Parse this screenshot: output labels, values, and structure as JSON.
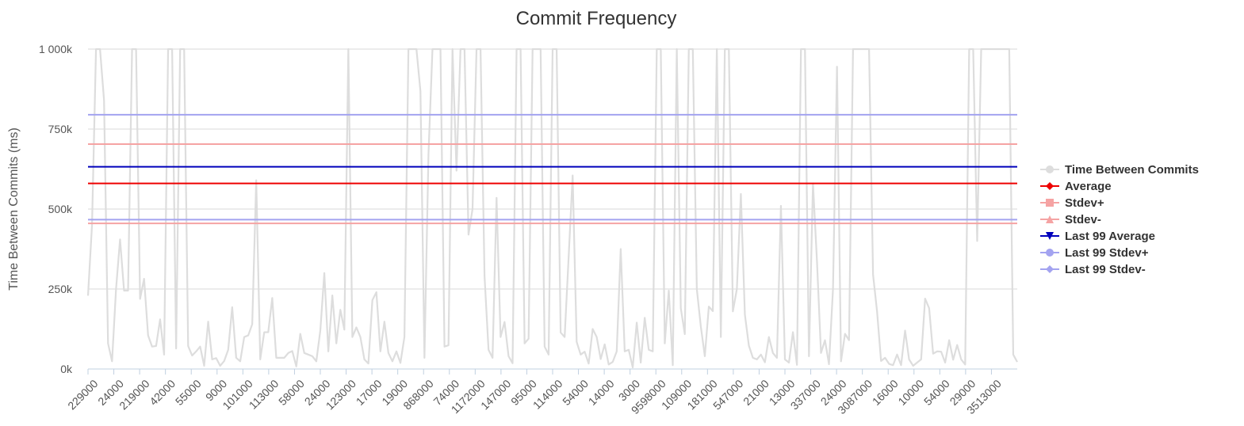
{
  "chart_data": {
    "type": "line",
    "title": "Commit Frequency",
    "xlabel": "",
    "ylabel": "Time Between Commits (ms)",
    "ylim": [
      0,
      1000000
    ],
    "yticks": [
      {
        "value": 0,
        "label": "0k"
      },
      {
        "value": 250000,
        "label": "250k"
      },
      {
        "value": 500000,
        "label": "500k"
      },
      {
        "value": 750000,
        "label": "750k"
      },
      {
        "value": 1000000,
        "label": "1 000k"
      }
    ],
    "x_tick_labels": [
      "229000",
      "24000",
      "219000",
      "42000",
      "55000",
      "9000",
      "101000",
      "113000",
      "58000",
      "24000",
      "123000",
      "17000",
      "19000",
      "868000",
      "74000",
      "1172000",
      "147000",
      "95000",
      "114000",
      "54000",
      "14000",
      "3000",
      "9598000",
      "109000",
      "181000",
      "547000",
      "21000",
      "13000",
      "337000",
      "24000",
      "3087000",
      "16000",
      "10000",
      "54000",
      "29000",
      "3513000"
    ],
    "grid": true,
    "legend_position": "right",
    "series": [
      {
        "name": "Time Between Commits",
        "color": "#dddddd",
        "marker": "circle",
        "values": [
          229000,
          450000,
          1000000,
          1000000,
          840000,
          80000,
          24000,
          250000,
          405000,
          245000,
          245000,
          1000000,
          1000000,
          219000,
          282000,
          105000,
          70000,
          72000,
          155000,
          45000,
          1000000,
          1000000,
          64000,
          1000000,
          1000000,
          72000,
          42000,
          55000,
          70000,
          10000,
          148000,
          30000,
          34000,
          10000,
          25000,
          60000,
          193000,
          35000,
          24000,
          100000,
          105000,
          140000,
          590000,
          30000,
          115000,
          115000,
          222000,
          35000,
          35000,
          35000,
          50000,
          56000,
          8000,
          110000,
          50000,
          45000,
          40000,
          24000,
          120000,
          300000,
          55000,
          230000,
          80000,
          185000,
          123000,
          1000000,
          100000,
          130000,
          100000,
          30000,
          17000,
          215000,
          240000,
          55000,
          148000,
          50000,
          24000,
          55000,
          19000,
          100000,
          1000000,
          1000000,
          1000000,
          868000,
          35000,
          670000,
          1000000,
          1000000,
          1000000,
          70000,
          74000,
          1000000,
          620000,
          1000000,
          1000000,
          420000,
          500000,
          1000000,
          1000000,
          290000,
          60000,
          35000,
          535000,
          100000,
          147000,
          40000,
          18000,
          1000000,
          1000000,
          80000,
          95000,
          1000000,
          1000000,
          1000000,
          70000,
          45000,
          1000000,
          1000000,
          114000,
          100000,
          350000,
          605000,
          85000,
          45000,
          54000,
          17000,
          125000,
          100000,
          31000,
          77000,
          14000,
          22000,
          55000,
          375000,
          55000,
          60000,
          5000,
          145000,
          20000,
          160000,
          60000,
          55000,
          1000000,
          1000000,
          80000,
          245000,
          12000,
          1000000,
          190000,
          109000,
          1000000,
          1000000,
          250000,
          133000,
          40000,
          195000,
          181000,
          1000000,
          100000,
          1000000,
          1000000,
          180000,
          250000,
          547000,
          170000,
          73000,
          35000,
          30000,
          45000,
          21000,
          100000,
          50000,
          35000,
          510000,
          30000,
          20000,
          115000,
          13000,
          1000000,
          1000000,
          40000,
          580000,
          337000,
          50000,
          90000,
          15000,
          250000,
          945000,
          24000,
          110000,
          90000,
          1000000,
          1000000,
          1000000,
          1000000,
          1000000,
          295000,
          180000,
          25000,
          35000,
          16000,
          12000,
          45000,
          12000,
          120000,
          30000,
          10000,
          20000,
          30000,
          220000,
          190000,
          48000,
          55000,
          54000,
          20000,
          90000,
          29000,
          75000,
          30000,
          14000,
          1000000,
          1000000,
          400000,
          1000000,
          1000000,
          1000000,
          1000000,
          1000000,
          1000000,
          1000000,
          1000000,
          45000,
          22000
        ]
      },
      {
        "name": "Average",
        "color": "#ee0000",
        "marker": "diamond",
        "constant": 580000
      },
      {
        "name": "Stdev+",
        "color": "#f5a3a3",
        "marker": "square",
        "constant": 703000
      },
      {
        "name": "Stdev-",
        "color": "#f5a3a3",
        "marker": "triangle",
        "constant": 455000
      },
      {
        "name": "Last 99 Average",
        "color": "#0000bb",
        "marker": "triangle-down",
        "constant": 632000
      },
      {
        "name": "Last 99 Stdev+",
        "color": "#a3a3f0",
        "marker": "circle",
        "constant": 795000
      },
      {
        "name": "Last 99 Stdev-",
        "color": "#a3a3f0",
        "marker": "diamond",
        "constant": 467000
      }
    ]
  }
}
